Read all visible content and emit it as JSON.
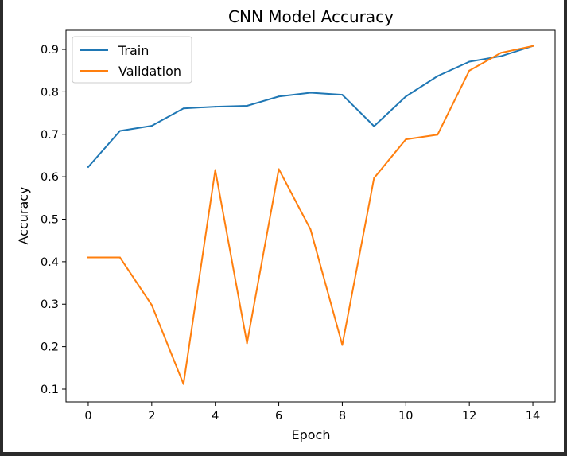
{
  "chart_data": {
    "type": "line",
    "title": "CNN Model Accuracy",
    "xlabel": "Epoch",
    "ylabel": "Accuracy",
    "x": [
      0,
      1,
      2,
      3,
      4,
      5,
      6,
      7,
      8,
      9,
      10,
      11,
      12,
      13,
      14
    ],
    "xlim": [
      -0.7,
      14.7
    ],
    "ylim": [
      0.07,
      0.945
    ],
    "xticks": [
      0,
      2,
      4,
      6,
      8,
      10,
      12,
      14
    ],
    "yticks": [
      0.1,
      0.2,
      0.3,
      0.4,
      0.5,
      0.6,
      0.7,
      0.8,
      0.9
    ],
    "xtick_labels": [
      "0",
      "2",
      "4",
      "6",
      "8",
      "10",
      "12",
      "14"
    ],
    "ytick_labels": [
      "0.1",
      "0.2",
      "0.3",
      "0.4",
      "0.5",
      "0.6",
      "0.7",
      "0.8",
      "0.9"
    ],
    "grid": false,
    "legend_position": "upper-left",
    "series": [
      {
        "name": "Train",
        "color": "#1f77b4",
        "values": [
          0.623,
          0.708,
          0.72,
          0.761,
          0.765,
          0.767,
          0.789,
          0.798,
          0.793,
          0.719,
          0.789,
          0.837,
          0.871,
          0.884,
          0.908
        ]
      },
      {
        "name": "Validation",
        "color": "#ff7f0e",
        "values": [
          0.41,
          0.41,
          0.298,
          0.112,
          0.616,
          0.208,
          0.618,
          0.476,
          0.204,
          0.597,
          0.688,
          0.699,
          0.85,
          0.892,
          0.908
        ]
      }
    ]
  }
}
